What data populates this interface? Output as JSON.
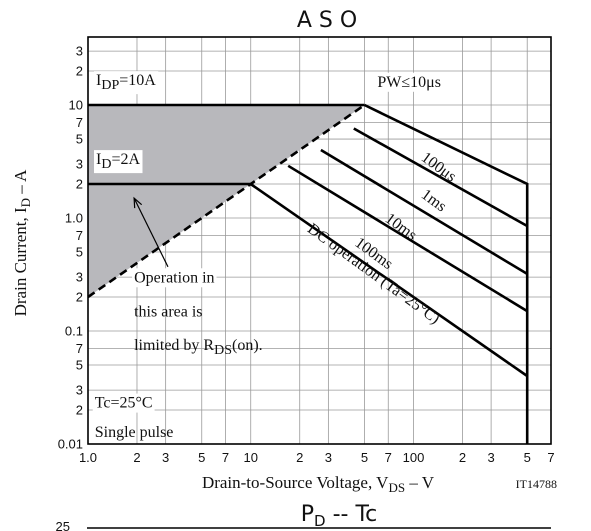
{
  "chart_data": [
    {
      "type": "line",
      "title": "A S O",
      "xlabel": "Drain-to-Source Voltage, V",
      "xlabel_sub": "DS",
      "xlabel_unit": " – V",
      "ylabel": "Drain Current, I",
      "ylabel_sub": "D",
      "ylabel_unit": " – A",
      "figure_code": "IT14788",
      "x_scale": "log",
      "y_scale": "log",
      "xlim": [
        1,
        700
      ],
      "ylim": [
        0.01,
        40
      ],
      "grid": true,
      "x_ticks": [
        {
          "v": 1,
          "t": "1.0"
        },
        {
          "v": 2,
          "t": "2"
        },
        {
          "v": 3,
          "t": "3"
        },
        {
          "v": 5,
          "t": "5"
        },
        {
          "v": 7,
          "t": "7"
        },
        {
          "v": 10,
          "t": "10"
        },
        {
          "v": 20,
          "t": "2"
        },
        {
          "v": 30,
          "t": "3"
        },
        {
          "v": 50,
          "t": "5"
        },
        {
          "v": 70,
          "t": "7"
        },
        {
          "v": 100,
          "t": "100"
        },
        {
          "v": 200,
          "t": "2"
        },
        {
          "v": 300,
          "t": "3"
        },
        {
          "v": 500,
          "t": "5"
        },
        {
          "v": 700,
          "t": "7"
        }
      ],
      "y_ticks": [
        {
          "v": 0.01,
          "t": "0.01"
        },
        {
          "v": 0.02,
          "t": "2"
        },
        {
          "v": 0.03,
          "t": "3"
        },
        {
          "v": 0.05,
          "t": "5"
        },
        {
          "v": 0.07,
          "t": "7"
        },
        {
          "v": 0.1,
          "t": "0.1"
        },
        {
          "v": 0.2,
          "t": "2"
        },
        {
          "v": 0.3,
          "t": "3"
        },
        {
          "v": 0.5,
          "t": "5"
        },
        {
          "v": 0.7,
          "t": "7"
        },
        {
          "v": 1,
          "t": "1.0"
        },
        {
          "v": 2,
          "t": "2"
        },
        {
          "v": 3,
          "t": "3"
        },
        {
          "v": 5,
          "t": "5"
        },
        {
          "v": 7,
          "t": "7"
        },
        {
          "v": 10,
          "t": "10"
        },
        {
          "v": 20,
          "t": "2"
        },
        {
          "v": 30,
          "t": "3"
        }
      ],
      "shaded_region": {
        "points": [
          [
            1,
            10
          ],
          [
            50,
            10
          ],
          [
            10,
            2
          ],
          [
            1,
            0.2
          ]
        ],
        "color": "#b8b8bc"
      },
      "rds_limit_line": {
        "points": [
          [
            1,
            0.2
          ],
          [
            50,
            10
          ]
        ],
        "style": "dashed"
      },
      "series": [
        {
          "points": [
            [
              1,
              10
            ],
            [
              50,
              10
            ]
          ]
        },
        {
          "points": [
            [
              1,
              2
            ],
            [
              10,
              2
            ]
          ]
        },
        {
          "points": [
            [
              50,
              10
            ],
            [
              500,
              2
            ],
            [
              500,
              0.01
            ]
          ]
        },
        {
          "points": [
            [
              43,
              6.2
            ],
            [
              500,
              0.85
            ]
          ]
        },
        {
          "points": [
            [
              27,
              4
            ],
            [
              500,
              0.32
            ]
          ]
        },
        {
          "points": [
            [
              17,
              2.9
            ],
            [
              500,
              0.15
            ]
          ]
        },
        {
          "points": [
            [
              10,
              2
            ],
            [
              500,
              0.04
            ]
          ]
        }
      ],
      "annotations": [
        {
          "text": "I",
          "sub": "DP",
          "tail": "=10A",
          "x": 1.12,
          "y": 15,
          "box": true
        },
        {
          "text": "I",
          "sub": "D",
          "tail": "=2A",
          "x": 1.12,
          "y": 3,
          "box": true
        },
        {
          "text": "PW≤10μs",
          "x": 60,
          "y": 14.5,
          "box": true
        },
        {
          "text": "100μs",
          "x": 110,
          "y": 3.3,
          "rotate": 36
        },
        {
          "text": "1ms",
          "x": 110,
          "y": 1.55,
          "rotate": 36
        },
        {
          "text": "10ms",
          "x": 66,
          "y": 0.95,
          "rotate": 36
        },
        {
          "text": "100ms",
          "x": 43,
          "y": 0.58,
          "rotate": 36
        },
        {
          "text": "DC operation (Ta=25°C)",
          "x": 22,
          "y": 0.77,
          "rotate": 36
        },
        {
          "text": "Operation in",
          "x": 1.92,
          "y": 0.27,
          "box": true
        },
        {
          "text": "this area is",
          "x": 1.92,
          "y": 0.135
        },
        {
          "text": "limited by R",
          "sub": "DS",
          "tail": "(on).",
          "x": 1.92,
          "y": 0.068
        },
        {
          "text": "Tc=25°C",
          "x": 1.1,
          "y": 0.021,
          "box": true
        },
        {
          "text": "Single pulse",
          "x": 1.1,
          "y": 0.0115
        }
      ],
      "arrow": {
        "from": [
          3.1,
          0.37
        ],
        "to": [
          1.92,
          1.5
        ]
      }
    },
    {
      "type": "line",
      "title": "P",
      "title_sub": "D",
      "title_tail": "  --  Tc",
      "y_tick_visible": "25"
    }
  ]
}
